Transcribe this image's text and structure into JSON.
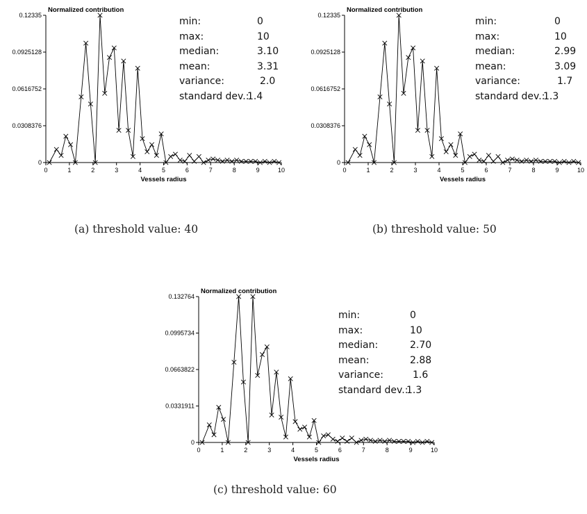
{
  "panels": [
    {
      "id": "a",
      "caption": "(a) threshold value: 40",
      "chart_data": {
        "type": "line",
        "title": "Normalized contribution",
        "xlabel": "Vessels radius",
        "ylabel": "",
        "xlim": [
          0,
          10
        ],
        "ylim": [
          0,
          0.12335
        ],
        "y_ticks": [
          "0",
          "0.0308376",
          "0.0616752",
          "0.0925128",
          "0.12335"
        ],
        "x_ticks": [
          "0",
          "1",
          "2",
          "3",
          "4",
          "5",
          "6",
          "7",
          "8",
          "9",
          "10"
        ],
        "marker": "x",
        "grid": false,
        "x": [
          0.15,
          0.45,
          0.65,
          0.85,
          1.05,
          1.25,
          1.5,
          1.7,
          1.9,
          2.1,
          2.3,
          2.5,
          2.7,
          2.9,
          3.1,
          3.3,
          3.5,
          3.7,
          3.9,
          4.1,
          4.3,
          4.5,
          4.7,
          4.9,
          5.1,
          5.3,
          5.5,
          5.7,
          5.9,
          6.1,
          6.3,
          6.5,
          6.7,
          6.9,
          7.1,
          7.3,
          7.5,
          7.7,
          7.9,
          8.1,
          8.3,
          8.5,
          8.7,
          8.9,
          9.1,
          9.3,
          9.5,
          9.7,
          9.9
        ],
        "y": [
          0.0,
          0.011,
          0.006,
          0.022,
          0.015,
          0.0,
          0.055,
          0.1,
          0.049,
          0.0,
          0.12335,
          0.058,
          0.088,
          0.096,
          0.027,
          0.085,
          0.027,
          0.005,
          0.079,
          0.02,
          0.009,
          0.015,
          0.006,
          0.024,
          0.0,
          0.005,
          0.007,
          0.002,
          0.001,
          0.006,
          0.001,
          0.005,
          0.0,
          0.002,
          0.003,
          0.002,
          0.001,
          0.002,
          0.001,
          0.002,
          0.001,
          0.001,
          0.001,
          0.001,
          0.0,
          0.001,
          0.0,
          0.001,
          0.0
        ]
      },
      "stats": [
        {
          "label": "min:",
          "value": "0"
        },
        {
          "label": "max:",
          "value": "10"
        },
        {
          "label": "median:",
          "value": "3.10"
        },
        {
          "label": "mean:",
          "value": "3.31"
        },
        {
          "label": "variance:",
          "value": "2.0"
        },
        {
          "label": "standard dev.:",
          "value": "1.4"
        }
      ]
    },
    {
      "id": "b",
      "caption": "(b) threshold value: 50",
      "chart_data": {
        "type": "line",
        "title": "Normalized contribution",
        "xlabel": "Vessels radius",
        "ylabel": "",
        "xlim": [
          0,
          10
        ],
        "ylim": [
          0,
          0.12335
        ],
        "y_ticks": [
          "0",
          "0.0308376",
          "0.0616752",
          "0.0925128",
          "0.12335"
        ],
        "x_ticks": [
          "0",
          "1",
          "2",
          "3",
          "4",
          "5",
          "6",
          "7",
          "8",
          "9",
          "10"
        ],
        "marker": "x",
        "grid": false,
        "x": [
          0.15,
          0.45,
          0.65,
          0.85,
          1.05,
          1.25,
          1.5,
          1.7,
          1.9,
          2.1,
          2.3,
          2.5,
          2.7,
          2.9,
          3.1,
          3.3,
          3.5,
          3.7,
          3.9,
          4.1,
          4.3,
          4.5,
          4.7,
          4.9,
          5.1,
          5.3,
          5.5,
          5.7,
          5.9,
          6.1,
          6.3,
          6.5,
          6.7,
          6.9,
          7.1,
          7.3,
          7.5,
          7.7,
          7.9,
          8.1,
          8.3,
          8.5,
          8.7,
          8.9,
          9.1,
          9.3,
          9.5,
          9.7,
          9.9
        ],
        "y": [
          0.0,
          0.011,
          0.006,
          0.022,
          0.015,
          0.0,
          0.055,
          0.1,
          0.049,
          0.0,
          0.12335,
          0.058,
          0.088,
          0.096,
          0.027,
          0.085,
          0.027,
          0.005,
          0.079,
          0.02,
          0.009,
          0.015,
          0.006,
          0.024,
          0.0,
          0.005,
          0.007,
          0.002,
          0.001,
          0.006,
          0.001,
          0.005,
          0.0,
          0.002,
          0.003,
          0.002,
          0.001,
          0.002,
          0.001,
          0.002,
          0.001,
          0.001,
          0.001,
          0.001,
          0.0,
          0.001,
          0.0,
          0.001,
          0.0
        ]
      },
      "stats": [
        {
          "label": "min:",
          "value": "0"
        },
        {
          "label": "max:",
          "value": "10"
        },
        {
          "label": "median:",
          "value": "2.99"
        },
        {
          "label": "mean:",
          "value": "3.09"
        },
        {
          "label": "variance:",
          "value": "1.7"
        },
        {
          "label": "standard dev.:",
          "value": "1.3"
        }
      ]
    },
    {
      "id": "c",
      "caption": "(c) threshold value: 60",
      "chart_data": {
        "type": "line",
        "title": "Normalized contribution",
        "xlabel": "Vessels radius",
        "ylabel": "",
        "xlim": [
          0,
          10
        ],
        "ylim": [
          0,
          0.132764
        ],
        "y_ticks": [
          "0",
          "0.0331911",
          "0.0663822",
          "0.0995734",
          "0.132764"
        ],
        "x_ticks": [
          "0",
          "1",
          "2",
          "3",
          "4",
          "5",
          "6",
          "7",
          "8",
          "9",
          "10"
        ],
        "marker": "x",
        "grid": false,
        "x": [
          0.15,
          0.45,
          0.65,
          0.85,
          1.05,
          1.25,
          1.5,
          1.7,
          1.9,
          2.1,
          2.3,
          2.5,
          2.7,
          2.9,
          3.1,
          3.3,
          3.5,
          3.7,
          3.9,
          4.1,
          4.3,
          4.5,
          4.7,
          4.9,
          5.1,
          5.3,
          5.5,
          5.7,
          5.9,
          6.1,
          6.3,
          6.5,
          6.7,
          6.9,
          7.1,
          7.3,
          7.5,
          7.7,
          7.9,
          8.1,
          8.3,
          8.5,
          8.7,
          8.9,
          9.1,
          9.3,
          9.5,
          9.7,
          9.9
        ],
        "y": [
          0.0,
          0.016,
          0.007,
          0.032,
          0.021,
          0.0,
          0.073,
          0.132764,
          0.055,
          0.0,
          0.132764,
          0.061,
          0.08,
          0.087,
          0.025,
          0.064,
          0.023,
          0.005,
          0.058,
          0.019,
          0.012,
          0.014,
          0.005,
          0.02,
          0.0,
          0.006,
          0.007,
          0.003,
          0.001,
          0.004,
          0.001,
          0.004,
          0.0,
          0.002,
          0.003,
          0.002,
          0.001,
          0.002,
          0.001,
          0.002,
          0.001,
          0.001,
          0.001,
          0.001,
          0.0,
          0.001,
          0.0,
          0.001,
          0.0
        ]
      },
      "stats": [
        {
          "label": "min:",
          "value": "0"
        },
        {
          "label": "max:",
          "value": "10"
        },
        {
          "label": "median:",
          "value": "2.70"
        },
        {
          "label": "mean:",
          "value": "2.88"
        },
        {
          "label": "variance:",
          "value": "1.6"
        },
        {
          "label": "standard dev.:",
          "value": "1.3"
        }
      ]
    }
  ]
}
